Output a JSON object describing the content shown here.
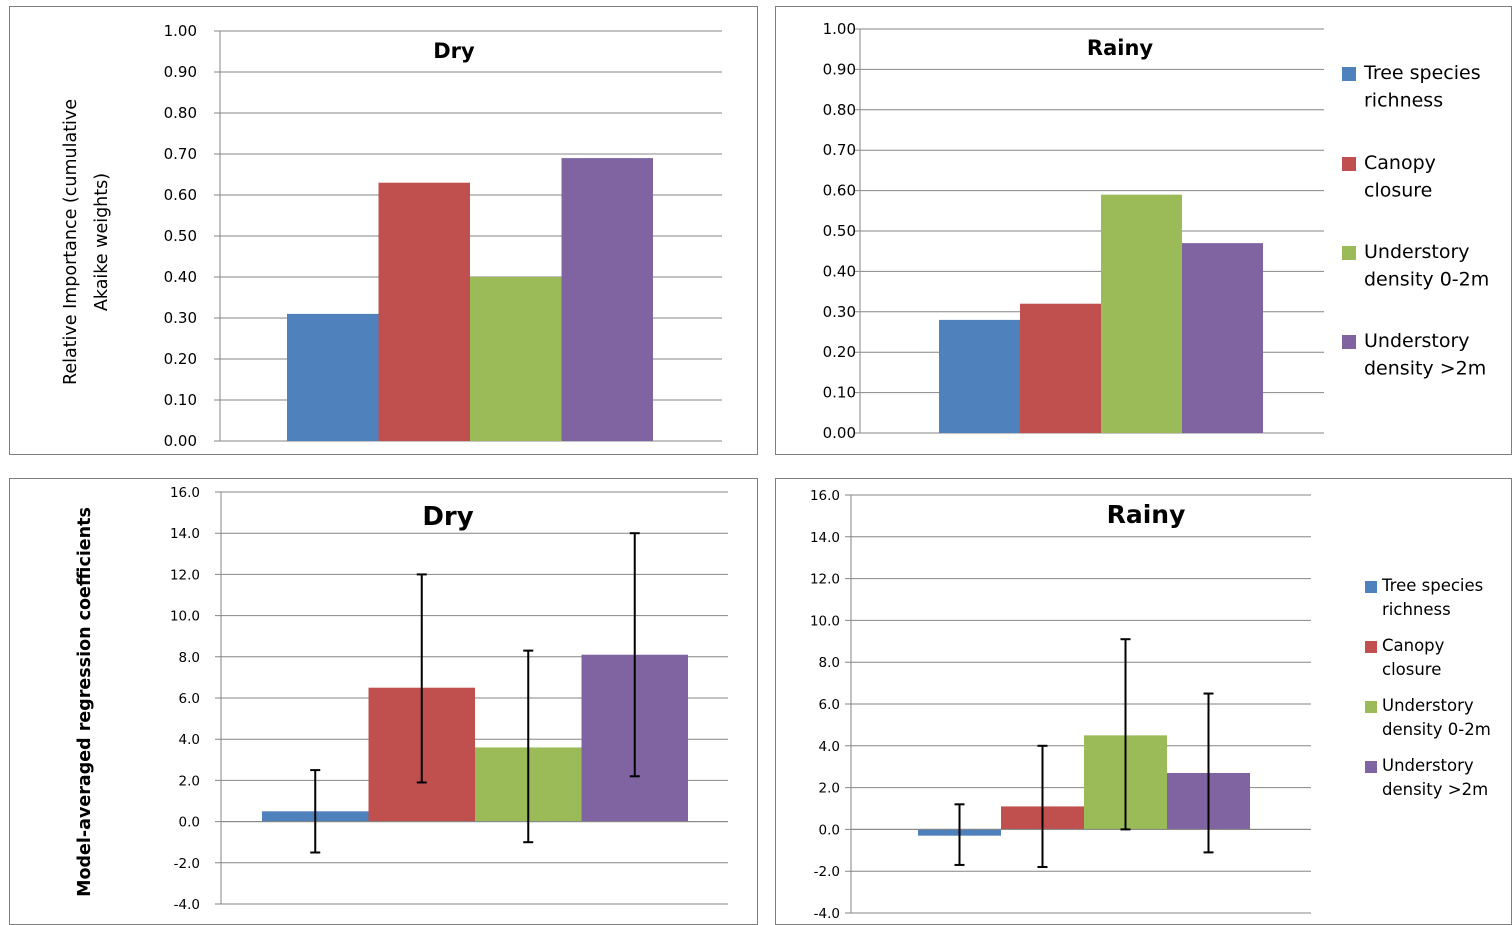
{
  "legend": [
    "Tree species richness",
    "Canopy closure",
    "Understory density 0-2m",
    "Understory density >2m"
  ],
  "legend_lines": [
    [
      "Tree species",
      "richness"
    ],
    [
      "Canopy",
      "closure"
    ],
    [
      "Understory",
      "density 0-2m"
    ],
    [
      "Understory",
      "density >2m"
    ]
  ],
  "colors": [
    "#4f81bd",
    "#c0504d",
    "#9bbb59",
    "#8064a2"
  ],
  "chart_data": [
    {
      "type": "bar",
      "title": "Dry",
      "ylabel": "Relative Importance (cumulative Akaike weights)",
      "ylabel_lines": [
        "Relative Importance (cumulative",
        "Akaike weights)"
      ],
      "ylim": [
        0,
        1
      ],
      "yticks": [
        "0.00",
        "0.10",
        "0.20",
        "0.30",
        "0.40",
        "0.50",
        "0.60",
        "0.70",
        "0.80",
        "0.90",
        "1.00"
      ],
      "grid": true,
      "legend": "none",
      "series": [
        {
          "name": "Tree species richness",
          "values": [
            0.31
          ]
        },
        {
          "name": "Canopy closure",
          "values": [
            0.63
          ]
        },
        {
          "name": "Understory density 0-2m",
          "values": [
            0.4
          ]
        },
        {
          "name": "Understory density >2m",
          "values": [
            0.69
          ]
        }
      ]
    },
    {
      "type": "bar",
      "title": "Rainy",
      "ylabel": "",
      "ylim": [
        0,
        1
      ],
      "yticks": [
        "0.00",
        "0.10",
        "0.20",
        "0.30",
        "0.40",
        "0.50",
        "0.60",
        "0.70",
        "0.80",
        "0.90",
        "1.00"
      ],
      "grid": true,
      "legend": "right",
      "series": [
        {
          "name": "Tree species richness",
          "values": [
            0.28
          ]
        },
        {
          "name": "Canopy closure",
          "values": [
            0.32
          ]
        },
        {
          "name": "Understory density 0-2m",
          "values": [
            0.59
          ]
        },
        {
          "name": "Understory density >2m",
          "values": [
            0.47
          ]
        }
      ]
    },
    {
      "type": "bar",
      "title": "Dry",
      "ylabel": "Model-averaged regression coefficients",
      "ylim": [
        -4,
        16
      ],
      "yticks": [
        "-4.0",
        "-2.0",
        "0.0",
        "2.0",
        "4.0",
        "6.0",
        "8.0",
        "10.0",
        "12.0",
        "14.0",
        "16.0"
      ],
      "grid": true,
      "legend": "none",
      "series": [
        {
          "name": "Tree species richness",
          "values": [
            0.5
          ],
          "error": [
            [
              -1.5,
              2.5
            ]
          ]
        },
        {
          "name": "Canopy closure",
          "values": [
            6.5
          ],
          "error": [
            [
              1.9,
              12.0
            ]
          ]
        },
        {
          "name": "Understory density 0-2m",
          "values": [
            3.6
          ],
          "error": [
            [
              -1.0,
              8.3
            ]
          ]
        },
        {
          "name": "Understory density >2m",
          "values": [
            8.1
          ],
          "error": [
            [
              2.2,
              14.0
            ]
          ]
        }
      ]
    },
    {
      "type": "bar",
      "title": "Rainy",
      "ylabel": "",
      "ylim": [
        -4,
        16
      ],
      "yticks": [
        "-4.0",
        "-2.0",
        "0.0",
        "2.0",
        "4.0",
        "6.0",
        "8.0",
        "10.0",
        "12.0",
        "14.0",
        "16.0"
      ],
      "grid": true,
      "legend": "right",
      "series": [
        {
          "name": "Tree species richness",
          "values": [
            -0.3
          ],
          "error": [
            [
              -1.7,
              1.2
            ]
          ]
        },
        {
          "name": "Canopy closure",
          "values": [
            1.1
          ],
          "error": [
            [
              -1.8,
              4.0
            ]
          ]
        },
        {
          "name": "Understory density 0-2m",
          "values": [
            4.5
          ],
          "error": [
            [
              0.0,
              9.1
            ]
          ]
        },
        {
          "name": "Understory density >2m",
          "values": [
            2.7
          ],
          "error": [
            [
              -1.1,
              6.5
            ]
          ]
        }
      ]
    }
  ]
}
